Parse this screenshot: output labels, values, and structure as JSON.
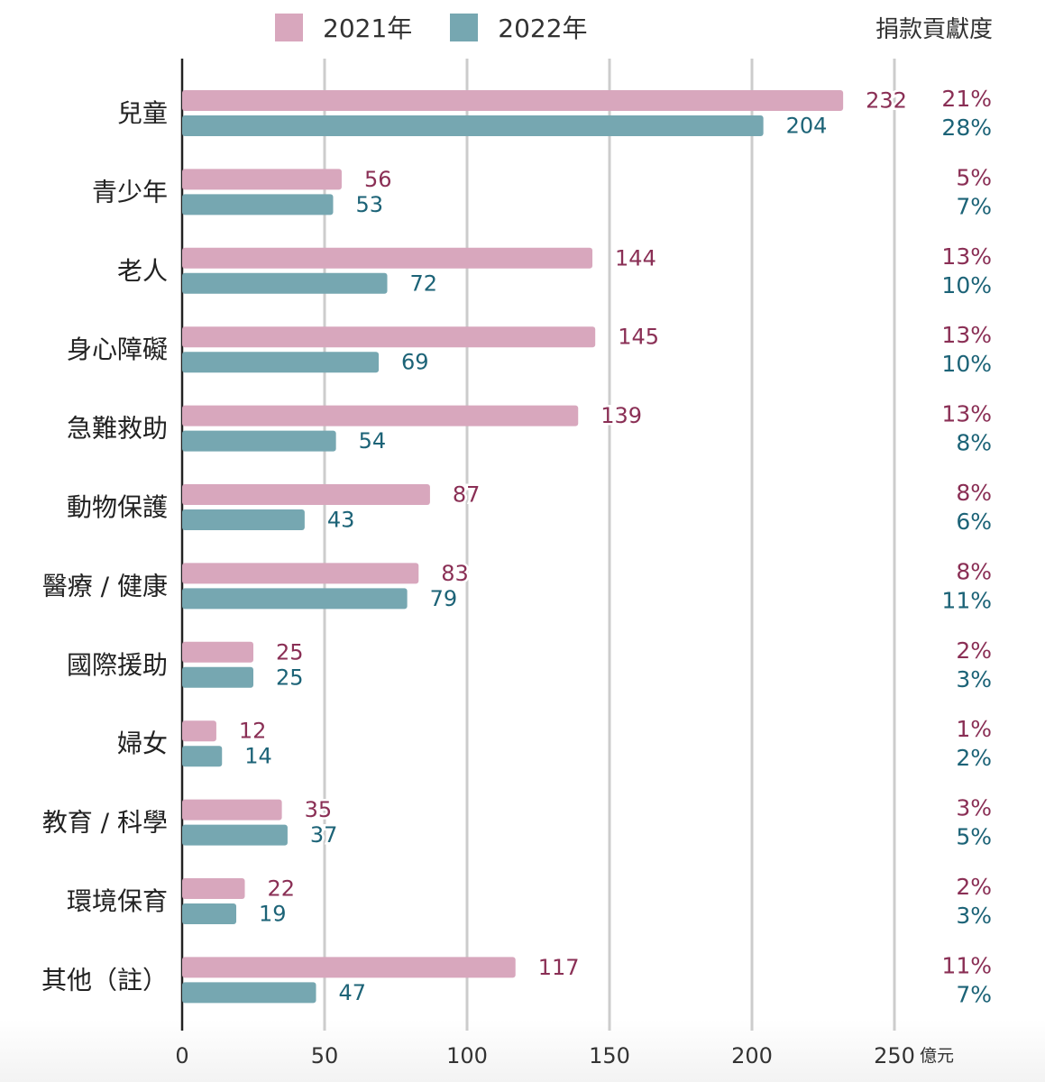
{
  "legend": {
    "items": [
      {
        "label": "2021年",
        "color": "#d8a7bd"
      },
      {
        "label": "2022年",
        "color": "#76a7b1"
      }
    ]
  },
  "contribution_header": "捐款貢獻度",
  "unit_label": "億元",
  "colors": {
    "bar_2021": "#d8a7bd",
    "bar_2022": "#76a7b1",
    "label_2021": "#8a2f55",
    "label_2022": "#1c6377",
    "grid": "#cccccc",
    "axis": "#222222"
  },
  "chart_data": {
    "type": "bar",
    "orientation": "horizontal",
    "categories": [
      "兒童",
      "青少年",
      "老人",
      "身心障礙",
      "急難救助",
      "動物保護",
      "醫療 / 健康",
      "國際援助",
      "婦女",
      "教育 / 科學",
      "環境保育",
      "其他（註）"
    ],
    "series": [
      {
        "name": "2021年",
        "values": [
          232,
          56,
          144,
          145,
          139,
          87,
          83,
          25,
          12,
          35,
          22,
          117
        ],
        "contribution": [
          "21%",
          "5%",
          "13%",
          "13%",
          "13%",
          "8%",
          "8%",
          "2%",
          "1%",
          "3%",
          "2%",
          "11%"
        ]
      },
      {
        "name": "2022年",
        "values": [
          204,
          53,
          72,
          69,
          54,
          43,
          79,
          25,
          14,
          37,
          19,
          47
        ],
        "contribution": [
          "28%",
          "7%",
          "10%",
          "10%",
          "8%",
          "6%",
          "11%",
          "3%",
          "2%",
          "5%",
          "3%",
          "7%"
        ]
      }
    ],
    "xlim": [
      0,
      250
    ],
    "xticks": [
      0,
      50,
      100,
      150,
      200,
      250
    ],
    "xlabel": "億元",
    "grid": true,
    "legend_position": "top"
  }
}
